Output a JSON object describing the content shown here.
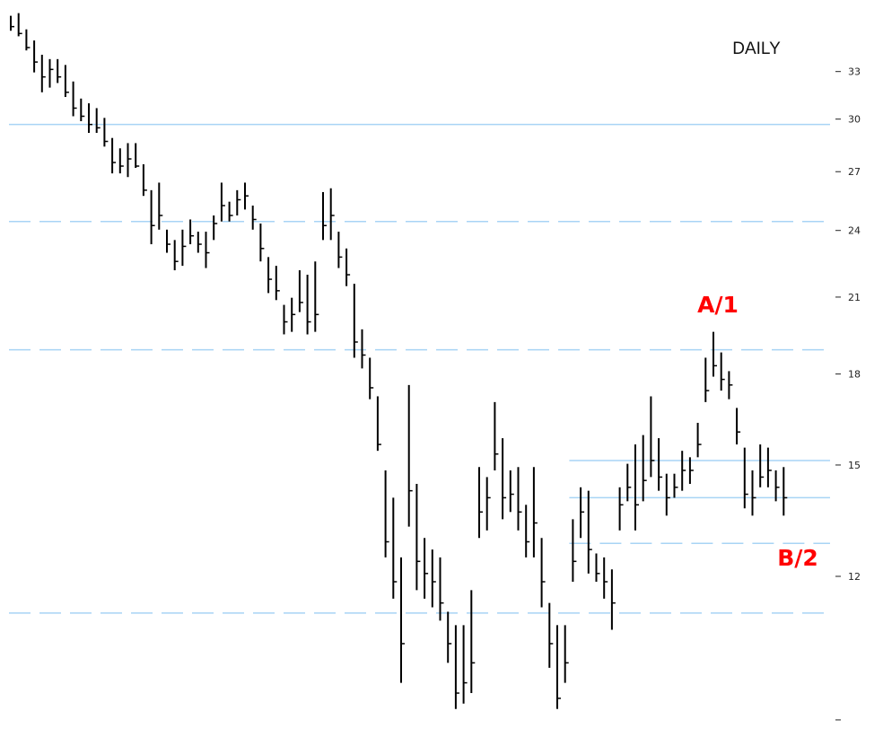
{
  "chart_data": {
    "type": "ohlc",
    "title": "DAILY",
    "log_scale": true,
    "ylim": [
      8.48,
      38.5
    ],
    "yticks": [
      {
        "value": 9,
        "label": null
      },
      12,
      15,
      18,
      21,
      24,
      27,
      30,
      33
    ],
    "color": "#000000",
    "level_color": "#a8d4f5",
    "levels": [
      {
        "value": 30,
        "style": "solid"
      },
      {
        "value": 24.7,
        "style": "dashed"
      },
      {
        "value": 19.1,
        "style": "dashed"
      },
      {
        "value": 11.27,
        "style": "dashed"
      },
      {
        "value": 15.3,
        "style": "solid",
        "from_bar": 72
      },
      {
        "value": 14.2,
        "style": "solid",
        "from_bar": 72
      },
      {
        "value": 12.96,
        "style": "dashed",
        "from_bar": 72
      }
    ],
    "annotations": [
      {
        "text": "A/1"
      },
      {
        "text": "B/2"
      }
    ],
    "high": [
      37.3,
      37.5,
      36.3,
      35.5,
      34.5,
      34.2,
      34.2,
      33.8,
      32.7,
      31.6,
      31.3,
      31,
      30.4,
      29.2,
      28.6,
      28.9,
      28.9,
      27.7,
      26.3,
      26.7,
      24.3,
      23.8,
      24.3,
      24.8,
      24.2,
      24.2,
      25,
      26.7,
      25.7,
      26.3,
      26.7,
      25.5,
      24.6,
      23,
      22.6,
      20.9,
      21.2,
      22.4,
      22.2,
      22.8,
      26.2,
      26.4,
      24.2,
      23.4,
      21.8,
      19.9,
      18.8,
      17.4,
      15,
      14.2,
      12.6,
      17.8,
      14.6,
      13.1,
      12.8,
      12.6,
      11.3,
      11,
      11,
      11.8,
      15.1,
      14.8,
      17.2,
      16,
      15,
      15.1,
      14,
      15.1,
      13.1,
      11.5,
      11,
      11,
      13.6,
      14.5,
      14.4,
      12.7,
      12.6,
      12.3,
      14.5,
      15.2,
      15.8,
      16.1,
      17.4,
      16,
      14.9,
      14.9,
      15.6,
      15.4,
      16.5,
      18.8,
      19.8,
      19,
      18.3,
      17,
      15.7,
      15,
      15.8,
      15.7,
      15,
      15.1
    ],
    "low": [
      36.2,
      35.8,
      34.8,
      33.3,
      32,
      32.3,
      32.6,
      31.7,
      30.5,
      30.2,
      29.5,
      29.5,
      28.7,
      27.2,
      27.2,
      27,
      27.5,
      26,
      23.6,
      24.3,
      23.2,
      22.4,
      22.6,
      23.6,
      23.2,
      22.5,
      23.8,
      24.7,
      24.7,
      25,
      25.3,
      24.3,
      22.8,
      21.4,
      21.1,
      19.7,
      19.8,
      20.6,
      19.7,
      19.8,
      23.8,
      23.8,
      22.5,
      21.7,
      18.8,
      18.4,
      17.3,
      15.6,
      12.6,
      11.6,
      9.8,
      13.4,
      11.8,
      11.6,
      11.4,
      11.1,
      10.2,
      9.3,
      9.4,
      9.6,
      13.1,
      13.3,
      15,
      13.6,
      13.8,
      13.3,
      12.6,
      12.6,
      11.4,
      10.1,
      9.3,
      9.8,
      12,
      13.1,
      12.2,
      12,
      11.6,
      10.9,
      13.3,
      14.1,
      13.3,
      14.1,
      14.8,
      14.4,
      13.7,
      14.2,
      14.4,
      14.6,
      15.4,
      17.2,
      18.1,
      17.6,
      17.3,
      15.8,
      13.9,
      13.7,
      14.5,
      14.5,
      14.1,
      13.7
    ],
    "close": [
      36.5,
      36,
      35,
      34,
      33,
      33.5,
      33,
      32,
      31,
      30.5,
      30,
      29.8,
      29,
      27.8,
      27.6,
      28,
      27.6,
      26.3,
      24.5,
      25,
      23.6,
      22.8,
      23.5,
      24,
      23.6,
      23.2,
      24.6,
      25.5,
      25,
      25.8,
      26,
      24.8,
      23.4,
      22,
      21.5,
      20.2,
      20.5,
      21,
      20.2,
      20.5,
      24.5,
      25,
      23,
      22.2,
      19.4,
      18.9,
      17.7,
      15.8,
      13,
      12,
      10.6,
      14.4,
      12.5,
      12.2,
      12,
      11.5,
      10.6,
      9.6,
      9.8,
      10.2,
      13.8,
      14.2,
      15.5,
      14.2,
      14.3,
      13.8,
      13,
      13.5,
      12,
      10.6,
      9.5,
      10.2,
      12.5,
      13.8,
      12.8,
      12.2,
      12,
      11.5,
      14,
      14.5,
      14,
      14.7,
      15.3,
      14.8,
      14.2,
      14.5,
      15,
      15,
      15.8,
      17.6,
      18.5,
      18,
      17.8,
      16.2,
      14.3,
      14.2,
      14.8,
      15,
      14.5,
      14.2
    ]
  }
}
